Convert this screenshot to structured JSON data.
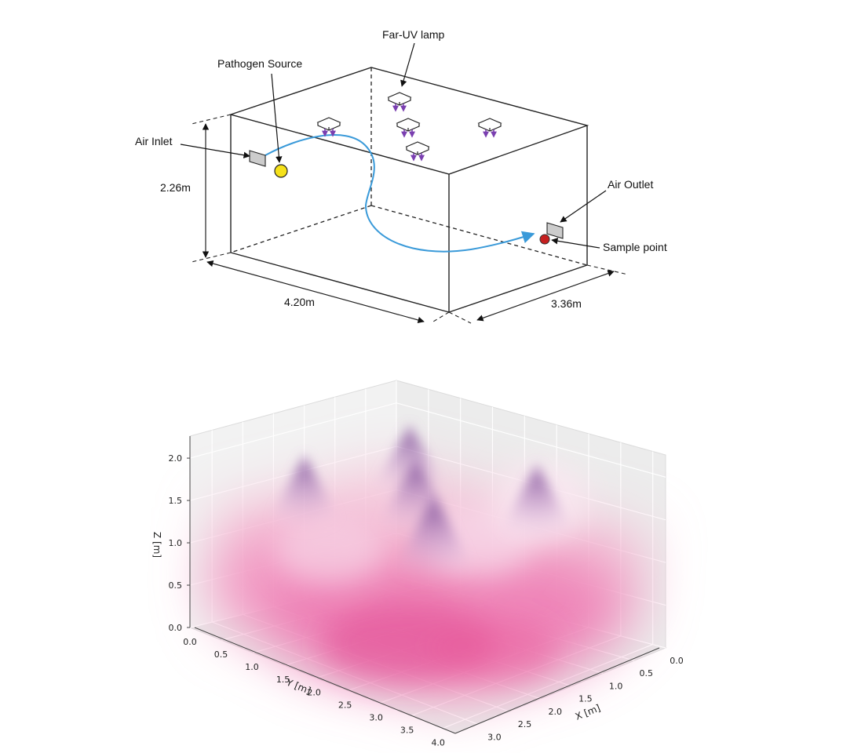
{
  "diagram": {
    "labels": {
      "far_uv_lamp": "Far-UV lamp",
      "pathogen_source": "Pathogen Source",
      "air_inlet": "Air Inlet",
      "air_outlet": "Air Outlet",
      "sample_point": "Sample point"
    },
    "dimensions": {
      "height": "2.26m",
      "length": "4.20m",
      "width": "3.36m"
    },
    "colors": {
      "airflow": "#3a9ad9",
      "pathogen_source": "#f5e11a",
      "sample_point": "#c62020",
      "lamp_arrows": "#7a3fb0",
      "vent": "#cccccc"
    }
  },
  "chart_data": {
    "type": "3d-volume",
    "title": "",
    "xlabel": "X [m]",
    "ylabel": "Y [m]",
    "zlabel": "Z [m]",
    "xlim": [
      0.0,
      3.36
    ],
    "ylim": [
      0.0,
      4.2
    ],
    "zlim": [
      0.0,
      2.26
    ],
    "x_ticks": [
      "0.0",
      "0.5",
      "1.0",
      "1.5",
      "2.0",
      "2.5",
      "3.0"
    ],
    "y_ticks": [
      "0.0",
      "0.5",
      "1.0",
      "1.5",
      "2.0",
      "2.5",
      "3.0",
      "3.5",
      "4.0"
    ],
    "z_ticks": [
      "0.0",
      "0.5",
      "1.0",
      "1.5",
      "2.0"
    ],
    "grid": true,
    "colors": {
      "field": "#e8559a"
    }
  }
}
